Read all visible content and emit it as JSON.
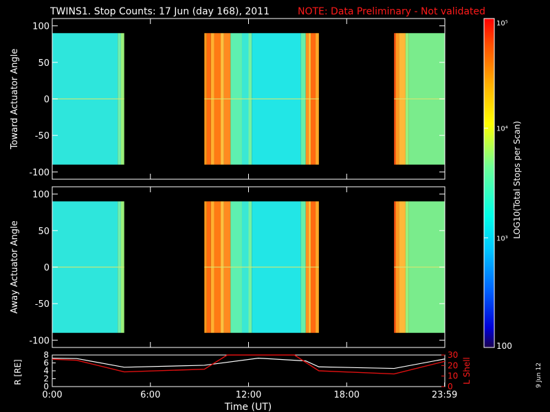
{
  "title": "TWINS1. Stop Counts: 17 Jun (day 168), 2011",
  "note": "NOTE: Data Preliminary - Not validated",
  "colors": {
    "background": "#000000",
    "axes": "#ffffff",
    "note": "#ff1a1a",
    "r_line": "#ffffff",
    "lshell_line": "#e01010"
  },
  "chart_data": [
    {
      "type": "heatmap",
      "panel": "top",
      "ylabel": "Toward Actuator Angle",
      "ylim": [
        -110,
        110
      ],
      "yticks": [
        100,
        50,
        0,
        -50,
        -100
      ],
      "xlim_hours": [
        0,
        24
      ],
      "data_segments_hours": [
        [
          0.0,
          4.4
        ],
        [
          9.3,
          16.3
        ],
        [
          20.9,
          24.0
        ]
      ]
    },
    {
      "type": "heatmap",
      "panel": "bottom",
      "ylabel": "Away Actuator Angle",
      "ylim": [
        -110,
        110
      ],
      "yticks": [
        100,
        50,
        0,
        -50,
        -100
      ],
      "xlim_hours": [
        0,
        24
      ],
      "data_segments_hours": [
        [
          0.0,
          4.4
        ],
        [
          9.3,
          16.3
        ],
        [
          20.9,
          24.0
        ]
      ]
    },
    {
      "type": "line",
      "panel": "orbit",
      "ylabel": "R [RE]",
      "y2label": "L Shell",
      "xlabel": "Time (UT)",
      "ylim": [
        0,
        8
      ],
      "y2lim": [
        0,
        30
      ],
      "yticks": [
        "8",
        "6",
        "4",
        "2",
        "0"
      ],
      "y2ticks": [
        "30",
        "20",
        "10",
        "0"
      ],
      "xticks": [
        "0:00",
        "6:00",
        "12:00",
        "18:00",
        "23:59"
      ],
      "series": [
        {
          "name": "R",
          "x": [
            0,
            1.5,
            4.4,
            9.3,
            12.6,
            15.5,
            16.3,
            20.9,
            24.0
          ],
          "y": [
            7.2,
            7.1,
            4.9,
            5.4,
            7.2,
            6.5,
            5.0,
            4.6,
            7.0
          ]
        },
        {
          "name": "L Shell",
          "x": [
            0,
            1.5,
            4.4,
            9.3,
            10.7,
            14.8,
            16.3,
            20.9,
            24.0
          ],
          "y": [
            26.0,
            25.0,
            14.0,
            16.5,
            31.0,
            31.0,
            15.0,
            12.0,
            24.0
          ]
        }
      ]
    }
  ],
  "colorbar": {
    "label": "LOG10(Total Stops per Scan)",
    "ticks": [
      "10⁵",
      "10⁴",
      "10³",
      "100"
    ],
    "values": [
      100000,
      10000,
      1000,
      100
    ]
  },
  "date_stamp": "9 Jun 12"
}
